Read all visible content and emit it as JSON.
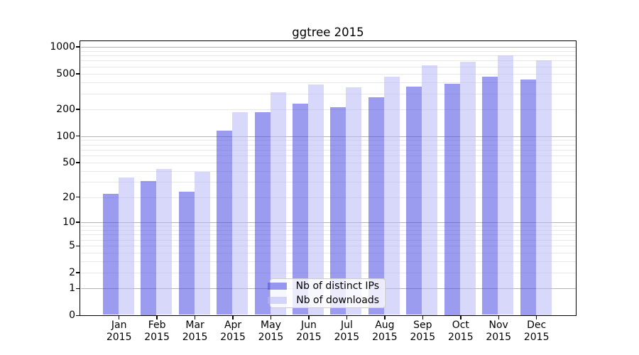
{
  "chart_data": {
    "type": "bar",
    "title": "ggtree 2015",
    "categories": [
      "Jan 2015",
      "Feb 2015",
      "Mar 2015",
      "Apr 2015",
      "May 2015",
      "Jun 2015",
      "Jul 2015",
      "Aug 2015",
      "Sep 2015",
      "Oct 2015",
      "Nov 2015",
      "Dec 2015"
    ],
    "x_tick_months": [
      "Jan",
      "Feb",
      "Mar",
      "Apr",
      "May",
      "Jun",
      "Jul",
      "Aug",
      "Sep",
      "Oct",
      "Nov",
      "Dec"
    ],
    "x_tick_year": "2015",
    "series": [
      {
        "name": "Nb of distinct IPs",
        "color": "#9b9bf0",
        "fill": "rgba(73,73,228,0.55)",
        "values": [
          22,
          31,
          23,
          114,
          184,
          230,
          212,
          274,
          360,
          385,
          460,
          430
        ]
      },
      {
        "name": "Nb of downloads",
        "color": "#d8d8fa",
        "fill": "rgba(184,184,246,0.55)",
        "values": [
          34,
          42,
          39,
          186,
          309,
          378,
          353,
          460,
          620,
          685,
          804,
          704
        ]
      }
    ],
    "xlabel": "",
    "ylabel": "",
    "y_scale": "log1p",
    "ylim": [
      0,
      1000
    ],
    "y_ticks": [
      0,
      1,
      2,
      5,
      10,
      20,
      50,
      100,
      200,
      500,
      1000
    ],
    "grid": "horizontal on, log minor lines",
    "grid_major_values": [
      1,
      10,
      100,
      1000
    ],
    "grid_minor_color": "#e7e7e7",
    "grid_major_color": "#b3b3b3",
    "legend_position": "lower center"
  }
}
